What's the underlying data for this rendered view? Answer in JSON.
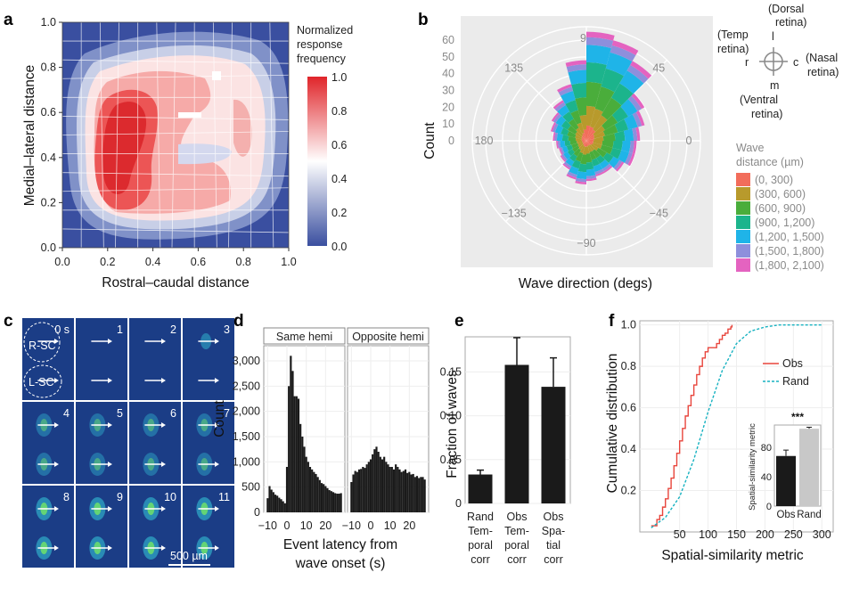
{
  "panel_letters": [
    "a",
    "b",
    "c",
    "d",
    "e",
    "f"
  ],
  "panel_a": {
    "xlabel": "Rostral–caudal distance",
    "ylabel": "Medial–lateral distance",
    "xticks": [
      "0.0",
      "0.2",
      "0.4",
      "0.6",
      "0.8",
      "1.0"
    ],
    "yticks": [
      "0.0",
      "0.2",
      "0.4",
      "0.6",
      "0.8",
      "1.0"
    ],
    "colorbar_title": [
      "Normalized",
      "response",
      "frequency"
    ],
    "colorbar_ticks": [
      "1.0",
      "0.8",
      "0.6",
      "0.4",
      "0.2",
      "0.0"
    ],
    "colors": {
      "low": "#3a4fa0",
      "mid": "#ffffff",
      "high": "#e0252a"
    }
  },
  "panel_b": {
    "xlabel": "Wave direction (degs)",
    "ylabel": "Count",
    "angle_labels": [
      "90",
      "45",
      "0",
      "−45",
      "−90",
      "−135",
      "180",
      "135"
    ],
    "radial_ticks": [
      "60",
      "50",
      "40",
      "30",
      "20",
      "10",
      "0"
    ],
    "orientation": {
      "dorsal": [
        "(Dorsal",
        "retina)"
      ],
      "l": "l",
      "temp": [
        "(Temp",
        "retina)"
      ],
      "r": "r",
      "nasal": [
        "(Nasal",
        "retina)"
      ],
      "c": "c",
      "m": "m",
      "ventral": [
        "(Ventral",
        "retina)"
      ]
    },
    "legend_title": [
      "Wave",
      "distance (µm)"
    ],
    "legend": [
      {
        "label": "(0, 300)",
        "color": "#f26d5b"
      },
      {
        "label": "(300, 600)",
        "color": "#b89a2c"
      },
      {
        "label": "(600, 900)",
        "color": "#4aad3b"
      },
      {
        "label": "(900, 1,200)",
        "color": "#1cb48c"
      },
      {
        "label": "(1,200, 1,500)",
        "color": "#1fb4e8"
      },
      {
        "label": "(1,500, 1,800)",
        "color": "#8e8fdc"
      },
      {
        "label": "(1,800, 2,100)",
        "color": "#e463c0"
      }
    ]
  },
  "panel_c": {
    "time_labels": [
      "0 s",
      "1",
      "2",
      "3",
      "4",
      "5",
      "6",
      "7",
      "8",
      "9",
      "10",
      "11"
    ],
    "region_labels": [
      "R-SC",
      "L-SC"
    ],
    "scale_label": "500 µm"
  },
  "panel_d": {
    "facets": [
      "Same hemi",
      "Opposite hemi"
    ],
    "ylabel": "Count",
    "yticks": [
      "0",
      "500",
      "1,000",
      "1,500",
      "2,000",
      "2,500",
      "3,000"
    ],
    "xticks": [
      "−10",
      "0",
      "10",
      "20"
    ],
    "xlabel": [
      "Event latency from",
      "wave onset (s)"
    ]
  },
  "panel_e": {
    "ylabel": "Fraction of waves",
    "yticks": [
      "0",
      "0.05",
      "0.10",
      "0.15"
    ],
    "categories": [
      [
        "Rand",
        "Tem-",
        "poral",
        "corr"
      ],
      [
        "Obs",
        "Tem-",
        "poral",
        "corr"
      ],
      [
        "Obs",
        "Spa-",
        "tial",
        "corr"
      ]
    ]
  },
  "panel_f": {
    "xlabel": "Spatial-similarity metric",
    "ylabel": "Cumulative distribution",
    "xticks": [
      "50",
      "100",
      "150",
      "200",
      "250",
      "300"
    ],
    "yticks": [
      "0.2",
      "0.4",
      "0.6",
      "0.8",
      "1.0"
    ],
    "legend": [
      {
        "label": "Obs",
        "color": "#e8453c"
      },
      {
        "label": "Rand",
        "color": "#17b2c1"
      }
    ],
    "inset": {
      "ylabel": "Spatial-similarity metric",
      "yticks": [
        "0",
        "40",
        "80"
      ],
      "categories": [
        "Obs",
        "Rand"
      ],
      "sig": "***"
    }
  },
  "chart_data": [
    {
      "panel": "d",
      "type": "bar",
      "facet_same": {
        "name": "Same hemi",
        "x": [
          -10,
          -9,
          -8,
          -7,
          -6,
          -5,
          -4,
          -3,
          -2,
          -1,
          0,
          1,
          2,
          3,
          4,
          5,
          6,
          7,
          8,
          9,
          10,
          11,
          12,
          13,
          14,
          15,
          16,
          17,
          18,
          19,
          20,
          21,
          22,
          23,
          24,
          25,
          26,
          27,
          28
        ],
        "values": [
          280,
          520,
          450,
          400,
          350,
          330,
          290,
          260,
          220,
          180,
          900,
          2500,
          3100,
          2800,
          2300,
          2300,
          2250,
          1750,
          1500,
          1300,
          1100,
          1000,
          900,
          850,
          800,
          760,
          700,
          640,
          580,
          560,
          520,
          480,
          440,
          420,
          400,
          380,
          370,
          370,
          380
        ]
      },
      "facet_opposite": {
        "name": "Opposite hemi",
        "x": [
          -10,
          -9,
          -8,
          -7,
          -6,
          -5,
          -4,
          -3,
          -2,
          -1,
          0,
          1,
          2,
          3,
          4,
          5,
          6,
          7,
          8,
          9,
          10,
          11,
          12,
          13,
          14,
          15,
          16,
          17,
          18,
          19,
          20,
          21,
          22,
          23,
          24,
          25,
          26,
          27,
          28
        ],
        "values": [
          600,
          750,
          820,
          800,
          850,
          860,
          900,
          880,
          950,
          1000,
          1050,
          1150,
          1250,
          1300,
          1200,
          1100,
          1050,
          1100,
          1000,
          950,
          900,
          900,
          850,
          950,
          900,
          850,
          800,
          820,
          850,
          780,
          800,
          750,
          760,
          700,
          720,
          680,
          700,
          700,
          650
        ]
      },
      "ylim": [
        0,
        3300
      ]
    },
    {
      "panel": "e",
      "type": "bar",
      "categories": [
        "Rand Temporal corr",
        "Obs Temporal corr",
        "Obs Spatial corr"
      ],
      "values": [
        0.033,
        0.158,
        0.133
      ],
      "errors": [
        0.005,
        0.031,
        0.033
      ],
      "ylim": [
        0,
        0.19
      ]
    },
    {
      "panel": "f",
      "type": "line",
      "series": [
        {
          "name": "Obs",
          "x": [
            0,
            10,
            15,
            20,
            25,
            30,
            35,
            40,
            45,
            50,
            55,
            60,
            65,
            70,
            75,
            80,
            85,
            90,
            95,
            100,
            105,
            110,
            115,
            120,
            125,
            130,
            135,
            140,
            142
          ],
          "values": [
            0.03,
            0.06,
            0.08,
            0.12,
            0.16,
            0.21,
            0.26,
            0.32,
            0.38,
            0.44,
            0.5,
            0.56,
            0.61,
            0.66,
            0.71,
            0.76,
            0.8,
            0.84,
            0.87,
            0.89,
            0.89,
            0.89,
            0.91,
            0.93,
            0.95,
            0.96,
            0.98,
            0.99,
            1.0
          ]
        },
        {
          "name": "Rand",
          "x": [
            0,
            25,
            50,
            75,
            100,
            125,
            150,
            175,
            200,
            225,
            250,
            275,
            300
          ],
          "values": [
            0.02,
            0.07,
            0.17,
            0.35,
            0.58,
            0.78,
            0.91,
            0.97,
            0.99,
            1.0,
            1.0,
            1.0,
            1.0
          ]
        }
      ],
      "xlim": [
        -20,
        320
      ],
      "ylim": [
        0,
        1.02
      ]
    },
    {
      "panel": "f-inset",
      "type": "bar",
      "categories": [
        "Obs",
        "Rand"
      ],
      "values": [
        68,
        105
      ],
      "errors": [
        8,
        2
      ],
      "ylim": [
        0,
        110
      ]
    }
  ]
}
